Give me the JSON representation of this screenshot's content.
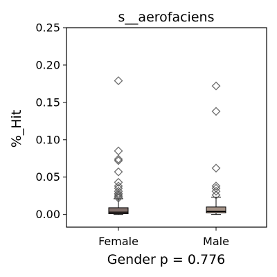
{
  "chart_data": {
    "type": "box",
    "title": "s__aerofaciens",
    "ylabel": "%_Hit",
    "xlabel": "Gender p = 0.776",
    "ylim": [
      -0.017,
      0.25
    ],
    "yticks": [
      0.0,
      0.05,
      0.1,
      0.15,
      0.2,
      0.25
    ],
    "ytick_labels": [
      "0.00",
      "0.05",
      "0.10",
      "0.15",
      "0.20",
      "0.25"
    ],
    "grid": false,
    "categories": [
      "Female",
      "Male"
    ],
    "groups": [
      {
        "name": "Female",
        "color": "#7f6e6a",
        "q1": 0.001,
        "median": 0.003,
        "q3": 0.009,
        "whisker_low": 0.0,
        "whisker_high": 0.021,
        "outliers": [
          0.179,
          0.085,
          0.074,
          0.072,
          0.057,
          0.043,
          0.038,
          0.035,
          0.031,
          0.028,
          0.026,
          0.024,
          0.022
        ]
      },
      {
        "name": "Male",
        "color": "#a49286",
        "q1": 0.002,
        "median": 0.004,
        "q3": 0.01,
        "whisker_low": 0.0,
        "whisker_high": 0.023,
        "outliers": [
          0.172,
          0.138,
          0.062,
          0.038,
          0.035,
          0.031,
          0.026
        ]
      }
    ]
  }
}
